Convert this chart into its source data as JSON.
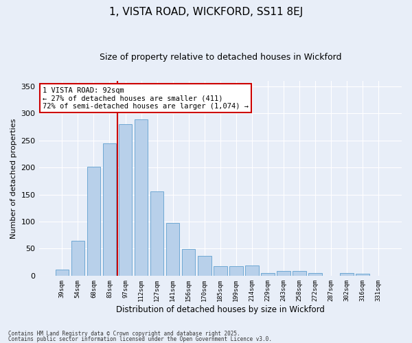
{
  "title1": "1, VISTA ROAD, WICKFORD, SS11 8EJ",
  "title2": "Size of property relative to detached houses in Wickford",
  "xlabel": "Distribution of detached houses by size in Wickford",
  "ylabel": "Number of detached properties",
  "categories": [
    "39sqm",
    "54sqm",
    "68sqm",
    "83sqm",
    "97sqm",
    "112sqm",
    "127sqm",
    "141sqm",
    "156sqm",
    "170sqm",
    "185sqm",
    "199sqm",
    "214sqm",
    "229sqm",
    "243sqm",
    "258sqm",
    "272sqm",
    "287sqm",
    "302sqm",
    "316sqm",
    "331sqm"
  ],
  "values": [
    11,
    65,
    201,
    244,
    280,
    289,
    156,
    98,
    49,
    36,
    17,
    17,
    19,
    5,
    9,
    9,
    5,
    0,
    5,
    4,
    0
  ],
  "bar_color": "#b8d0ea",
  "bar_edge_color": "#6fa8d4",
  "vline_color": "#cc0000",
  "annotation_text": "1 VISTA ROAD: 92sqm\n← 27% of detached houses are smaller (411)\n72% of semi-detached houses are larger (1,074) →",
  "annotation_box_color": "#ffffff",
  "annotation_box_edge": "#cc0000",
  "ylim": [
    0,
    360
  ],
  "yticks": [
    0,
    50,
    100,
    150,
    200,
    250,
    300,
    350
  ],
  "footer1": "Contains HM Land Registry data © Crown copyright and database right 2025.",
  "footer2": "Contains public sector information licensed under the Open Government Licence v3.0.",
  "bg_color": "#e8eef8",
  "plot_bg_color": "#e8eef8",
  "vline_pos": 3.5
}
